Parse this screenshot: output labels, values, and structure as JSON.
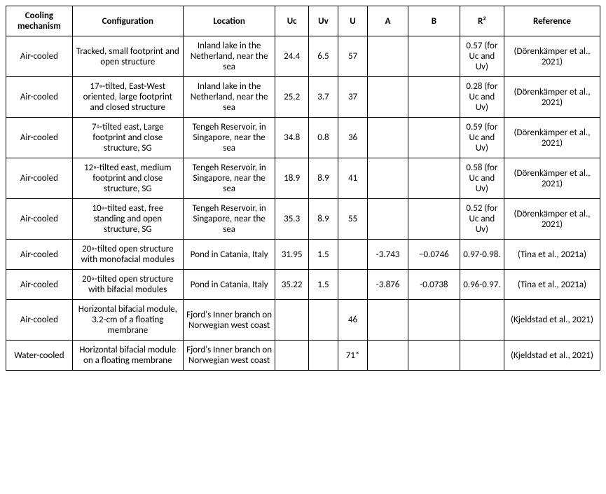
{
  "table": {
    "columns": [
      {
        "key": "cooling",
        "label": "Cooling mechanism",
        "class": "col-cooling"
      },
      {
        "key": "config",
        "label": "Configuration",
        "class": "col-config"
      },
      {
        "key": "location",
        "label": "Location",
        "class": "col-location"
      },
      {
        "key": "uc",
        "label": "Uc",
        "class": "col-uc"
      },
      {
        "key": "uv",
        "label": "Uv",
        "class": "col-uv"
      },
      {
        "key": "u",
        "label": "U",
        "class": "col-u"
      },
      {
        "key": "a",
        "label": "A",
        "class": "col-a"
      },
      {
        "key": "b",
        "label": "B",
        "class": "col-b"
      },
      {
        "key": "r2",
        "label": "R²",
        "class": "col-r2"
      },
      {
        "key": "ref",
        "label": "Reference",
        "class": "col-ref"
      }
    ],
    "rows": [
      {
        "cooling": "Air-cooled",
        "config": "Tracked, small footprint and open structure",
        "location": "Inland lake in the Netherland, near the sea",
        "uc": "24.4",
        "uv": "6.5",
        "u": "57",
        "a": "",
        "b": "",
        "r2": "0.57 (for Uc and Uv)",
        "ref": "(Dörenkämper et al., 2021)"
      },
      {
        "cooling": "Air-cooled",
        "config": "17◦-tilted, East-West oriented, large footprint and closed structure",
        "location": "Inland lake in the Netherland, near the sea",
        "uc": "25.2",
        "uv": "3.7",
        "u": "37",
        "a": "",
        "b": "",
        "r2": "0.28 (for Uc and Uv)",
        "ref": "(Dörenkämper et al., 2021)"
      },
      {
        "cooling": "Air-cooled",
        "config": "7◦-tilted east, Large footprint and close structure, SG",
        "location": "Tengeh Reservoir, in Singapore, near the sea",
        "uc": "34.8",
        "uv": "0.8",
        "u": "36",
        "a": "",
        "b": "",
        "r2": "0.59 (for Uc and Uv)",
        "ref": "(Dörenkämper et al., 2021)"
      },
      {
        "cooling": "Air-cooled",
        "config": "12◦-tilted east, medium footprint and close structure, SG",
        "location": "Tengeh Reservoir, in Singapore, near the sea",
        "uc": "18.9",
        "uv": "8.9",
        "u": "41",
        "a": "",
        "b": "",
        "r2": "0.58 (for Uc and Uv)",
        "ref": "(Dörenkämper et al., 2021)"
      },
      {
        "cooling": "Air-cooled",
        "config": "10◦-tilted east, free standing and open structure, SG",
        "location": "Tengeh Reservoir, in Singapore, near the sea",
        "uc": "35.3",
        "uv": "8.9",
        "u": "55",
        "a": "",
        "b": "",
        "r2": "0.52 (for Uc and Uv)",
        "ref": "(Dörenkämper et al., 2021)"
      },
      {
        "cooling": "Air-cooled",
        "config": "20◦-tilted open structure with monofacial modules",
        "location": "Pond in Catania, Italy",
        "uc": "31.95",
        "uv": "1.5",
        "u": "",
        "a": "-3.743",
        "b": "−0.0746",
        "r2": "0.97-0.98.",
        "ref": "(Tina et al., 2021a)"
      },
      {
        "cooling": "Air-cooled",
        "config": "20◦-tilted open structure with bifacial modules",
        "location": "Pond in Catania, Italy",
        "uc": "35.22",
        "uv": "1.5",
        "u": "",
        "a": "-3.876",
        "b": "-0.0738",
        "r2": "0.96-0.97.",
        "ref": "(Tina et al., 2021a)"
      },
      {
        "cooling": "Air-cooled",
        "config": "Horizontal bifacial module, 3.2-cm of a floating membrane",
        "location": "Fjord's Inner branch on Norwegian west coast",
        "uc": "",
        "uv": "",
        "u": "46",
        "a": "",
        "b": "",
        "r2": "",
        "ref": "(Kjeldstad et al., 2021)"
      },
      {
        "cooling": "Water-cooled",
        "config": "Horizontal bifacial module on a floating membrane",
        "location": "Fjord's Inner branch on Norwegian west coast",
        "uc": "",
        "uv": "",
        "u": "71*",
        "a": "",
        "b": "",
        "r2": "",
        "ref": "(Kjeldstad et al., 2021)"
      }
    ]
  }
}
